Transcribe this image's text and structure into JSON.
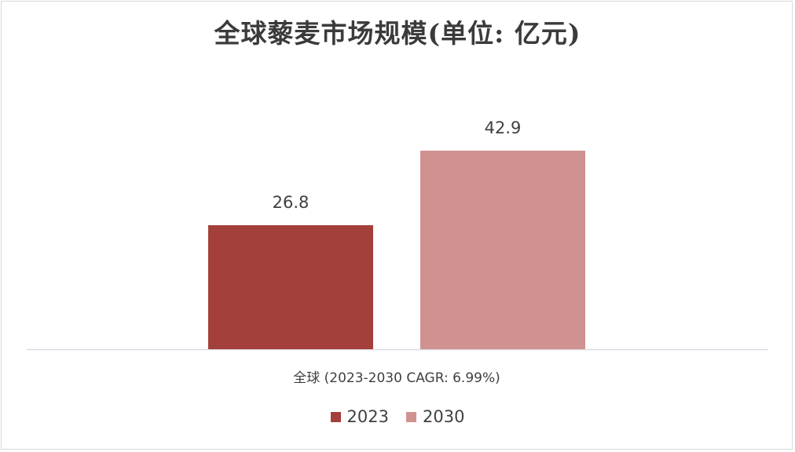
{
  "chart_data": {
    "type": "bar",
    "title": "全球藜麦市场规模(单位: 亿元)",
    "categories": [
      "全球 (2023-2030 CAGR: 6.99%)"
    ],
    "series": [
      {
        "name": "2023",
        "values": [
          26.8
        ],
        "color": "#a3403b"
      },
      {
        "name": "2030",
        "values": [
          42.9
        ],
        "color": "#d09290"
      }
    ],
    "xlabel": "",
    "ylabel": "",
    "ylim": [
      0,
      50
    ],
    "grid": false,
    "legend_position": "bottom"
  },
  "colors": {
    "axis": "#d9d9e6",
    "data_label": "#404040",
    "category_label": "#404040"
  }
}
